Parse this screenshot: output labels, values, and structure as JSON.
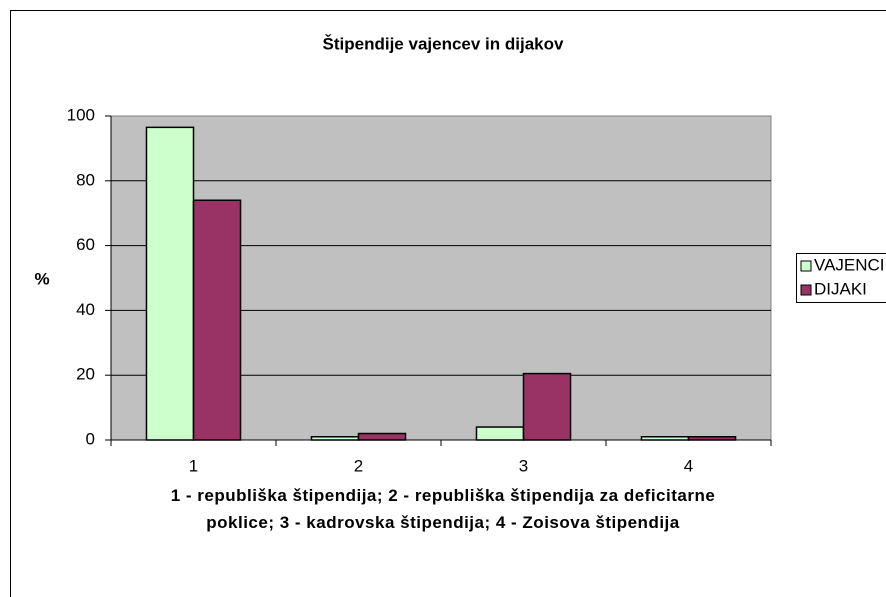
{
  "chart_data": {
    "type": "bar",
    "title": "Štipendije vajencev in dijakov",
    "y_label": "%",
    "x_label": "1 - republiška štipendija; 2 - republiška štipendija za deficitarne poklice; 3 - kadrovska štipendija; 4 - Zoisova štipendija",
    "categories": [
      "1",
      "2",
      "3",
      "4"
    ],
    "series": [
      {
        "name": "VAJENCI",
        "color": "#ccffcc",
        "values": [
          96.5,
          1,
          4,
          1
        ]
      },
      {
        "name": "DIJAKI",
        "color": "#993366",
        "values": [
          74,
          2,
          20.5,
          1
        ]
      }
    ],
    "ylim": [
      0,
      100
    ],
    "yticks": [
      0,
      20,
      40,
      60,
      80,
      100
    ],
    "grid": true,
    "legend": "right"
  }
}
